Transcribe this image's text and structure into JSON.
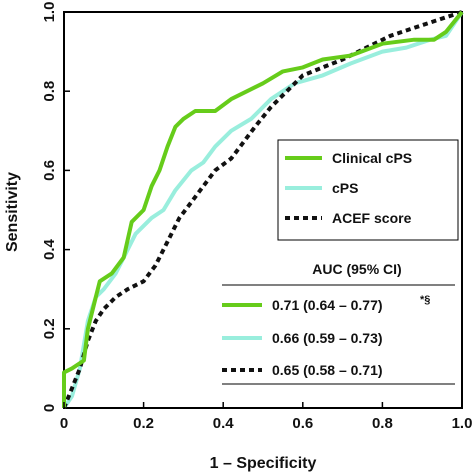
{
  "chart_data": {
    "type": "line",
    "xlabel": "1 – Specificity",
    "ylabel": "Sensitivity",
    "xlim": [
      0,
      1
    ],
    "ylim": [
      0,
      1
    ],
    "xticks": [
      "0",
      "0.2",
      "0.4",
      "0.6",
      "0.8",
      "1.0"
    ],
    "yticks": [
      "0",
      "0.2",
      "0.4",
      "0.6",
      "0.8",
      "1.0"
    ],
    "grid": false,
    "legend_position": "right",
    "series": [
      {
        "name": "Clinical cPS",
        "color": "#66cc1a",
        "style": "solid",
        "auc": "0.71 (0.64 – 0.77)",
        "auc_mark": "*§",
        "points": [
          [
            0,
            0
          ],
          [
            0,
            0.09
          ],
          [
            0.02,
            0.1
          ],
          [
            0.05,
            0.12
          ],
          [
            0.06,
            0.2
          ],
          [
            0.08,
            0.28
          ],
          [
            0.09,
            0.32
          ],
          [
            0.12,
            0.34
          ],
          [
            0.15,
            0.38
          ],
          [
            0.17,
            0.47
          ],
          [
            0.2,
            0.5
          ],
          [
            0.22,
            0.56
          ],
          [
            0.24,
            0.6
          ],
          [
            0.26,
            0.66
          ],
          [
            0.28,
            0.71
          ],
          [
            0.3,
            0.73
          ],
          [
            0.33,
            0.75
          ],
          [
            0.38,
            0.75
          ],
          [
            0.42,
            0.78
          ],
          [
            0.46,
            0.8
          ],
          [
            0.5,
            0.82
          ],
          [
            0.55,
            0.85
          ],
          [
            0.6,
            0.86
          ],
          [
            0.65,
            0.88
          ],
          [
            0.72,
            0.89
          ],
          [
            0.8,
            0.92
          ],
          [
            0.88,
            0.93
          ],
          [
            0.93,
            0.93
          ],
          [
            0.96,
            0.95
          ],
          [
            1,
            1
          ]
        ]
      },
      {
        "name": "cPS",
        "color": "#99eedd",
        "style": "solid",
        "auc": "0.66 (0.59 – 0.73)",
        "auc_mark": "",
        "points": [
          [
            0,
            0
          ],
          [
            0.02,
            0.03
          ],
          [
            0.04,
            0.1
          ],
          [
            0.06,
            0.22
          ],
          [
            0.08,
            0.28
          ],
          [
            0.1,
            0.3
          ],
          [
            0.13,
            0.34
          ],
          [
            0.16,
            0.4
          ],
          [
            0.18,
            0.44
          ],
          [
            0.22,
            0.48
          ],
          [
            0.25,
            0.5
          ],
          [
            0.28,
            0.55
          ],
          [
            0.32,
            0.6
          ],
          [
            0.35,
            0.62
          ],
          [
            0.38,
            0.66
          ],
          [
            0.42,
            0.7
          ],
          [
            0.47,
            0.73
          ],
          [
            0.52,
            0.78
          ],
          [
            0.58,
            0.82
          ],
          [
            0.65,
            0.84
          ],
          [
            0.72,
            0.87
          ],
          [
            0.8,
            0.9
          ],
          [
            0.86,
            0.91
          ],
          [
            0.92,
            0.93
          ],
          [
            0.96,
            0.94
          ],
          [
            1,
            1
          ]
        ]
      },
      {
        "name": "ACEF score",
        "color": "#111111",
        "style": "dashed",
        "auc": "0.65 (0.58 – 0.71)",
        "auc_mark": "",
        "points": [
          [
            0,
            0
          ],
          [
            0.02,
            0.05
          ],
          [
            0.04,
            0.1
          ],
          [
            0.06,
            0.17
          ],
          [
            0.08,
            0.22
          ],
          [
            0.1,
            0.25
          ],
          [
            0.13,
            0.28
          ],
          [
            0.16,
            0.3
          ],
          [
            0.2,
            0.32
          ],
          [
            0.23,
            0.36
          ],
          [
            0.26,
            0.42
          ],
          [
            0.29,
            0.48
          ],
          [
            0.32,
            0.52
          ],
          [
            0.35,
            0.56
          ],
          [
            0.38,
            0.6
          ],
          [
            0.42,
            0.63
          ],
          [
            0.45,
            0.67
          ],
          [
            0.48,
            0.71
          ],
          [
            0.52,
            0.76
          ],
          [
            0.56,
            0.8
          ],
          [
            0.6,
            0.84
          ],
          [
            0.65,
            0.86
          ],
          [
            0.7,
            0.88
          ],
          [
            0.76,
            0.91
          ],
          [
            0.82,
            0.94
          ],
          [
            0.88,
            0.96
          ],
          [
            0.94,
            0.98
          ],
          [
            1,
            1
          ]
        ]
      }
    ],
    "auc_header": "AUC (95% CI)"
  }
}
